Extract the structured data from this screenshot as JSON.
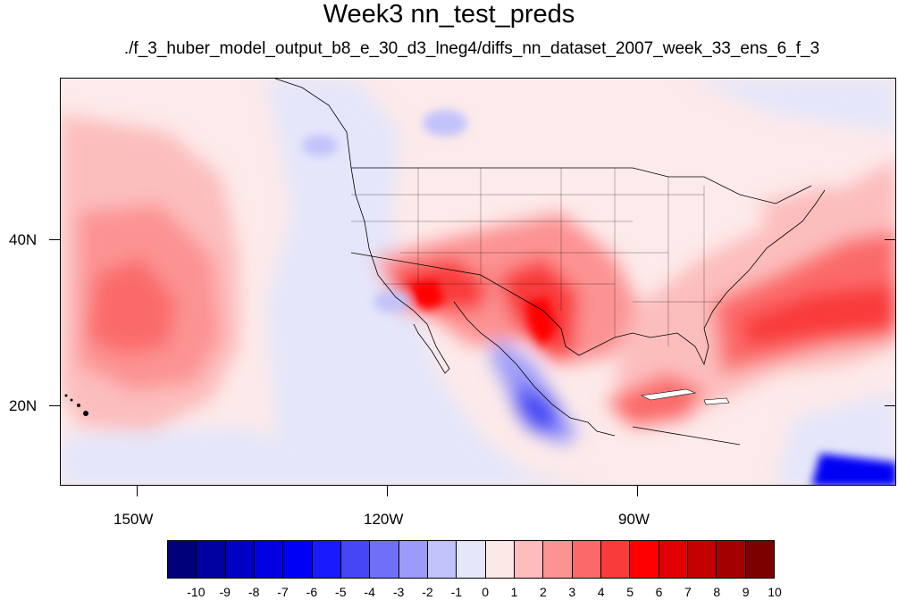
{
  "header": {
    "title": "Week3 nn_test_preds",
    "subtitle": "./f_3_huber_model_output_b8_e_30_d3_lneg4/diffs_nn_dataset_2007_week_33_ens_6_f_3"
  },
  "map": {
    "lon_range": [
      -160,
      -60
    ],
    "lat_range": [
      11,
      59
    ],
    "x_tick_labels": [
      "150W",
      "120W",
      "90W"
    ],
    "x_tick_values": [
      -150,
      -120,
      -90
    ],
    "y_tick_labels": [
      "40N",
      "20N"
    ],
    "y_tick_values": [
      40,
      20
    ]
  },
  "colorbar": {
    "labels": [
      "-10",
      "-9",
      "-8",
      "-7",
      "-6",
      "-5",
      "-4",
      "-3",
      "-2",
      "-1",
      "0",
      "1",
      "2",
      "3",
      "4",
      "5",
      "6",
      "7",
      "8",
      "9",
      "10"
    ],
    "colors": [
      "#00007a",
      "#0000a0",
      "#0000c4",
      "#0000e0",
      "#0000f5",
      "#1a1aff",
      "#4646f5",
      "#6f6ff8",
      "#9b9bfa",
      "#c3c3fb",
      "#e4e6fa",
      "#fde8e8",
      "#fdbdbd",
      "#fc9393",
      "#fb6a6a",
      "#f93b3b",
      "#ff0000",
      "#e00000",
      "#c40000",
      "#a50000",
      "#7d0000"
    ]
  }
}
